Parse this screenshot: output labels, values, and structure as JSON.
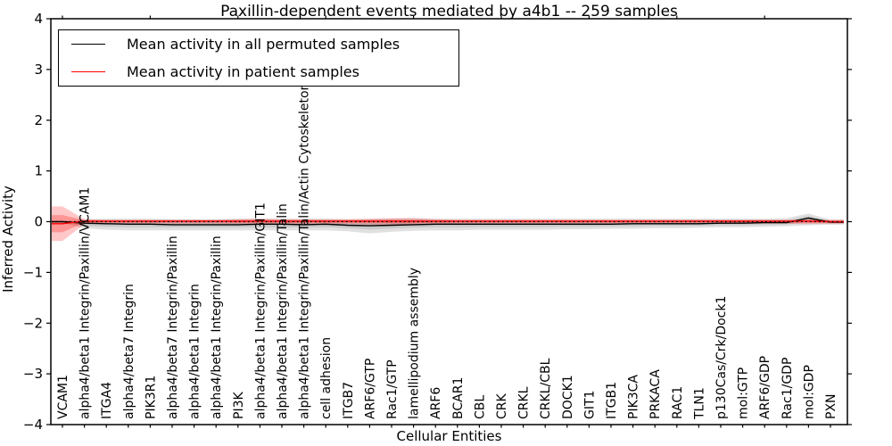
{
  "title": "Paxillin-dependent events mediated by a4b1 -- 259 samples",
  "legend": {
    "items": [
      {
        "label": "Mean activity in all permuted samples",
        "color": "#000000"
      },
      {
        "label": "Mean activity in patient samples",
        "color": "#ff0000"
      }
    ]
  },
  "colors": {
    "permuted_line": "#000000",
    "patient_line": "#ff0000",
    "permuted_band": "rgba(0,0,0,0.12)",
    "patient_band": "rgba(255,0,0,0.22)",
    "frame": "#000000"
  },
  "chart_data": {
    "type": "line",
    "title": "Paxillin-dependent events mediated by a4b1 -- 259 samples",
    "xlabel": "Cellular Entities",
    "ylabel": "Inferred Activity",
    "ylim": [
      -4,
      4
    ],
    "yticks": [
      4,
      3,
      2,
      1,
      0,
      -1,
      -2,
      -3,
      -4
    ],
    "grid": false,
    "zero_line_style": "dotted",
    "legend_position": "upper left",
    "categories": [
      "VCAM1",
      "alpha4/beta1 Integrin/Paxillin/VCAM1",
      "ITGA4",
      "alpha4/beta7 Integrin",
      "PIK3R1",
      "alpha4/beta7 Integrin/Paxillin",
      "alpha4/beta1 Integrin",
      "alpha4/beta1 Integrin/Paxillin",
      "PI3K",
      "alpha4/beta1 Integrin/Paxillin/GIT1",
      "alpha4/beta1 Integrin/Paxillin/Talin",
      "alpha4/beta1 Integrin/Paxillin/Talin/Actin Cytoskeleton",
      "cell adhesion",
      "ITGB7",
      "ARF6/GTP",
      "Rac1/GTP",
      "lamellipodium assembly",
      "ARF6",
      "BCAR1",
      "CBL",
      "CRK",
      "CRKL",
      "CRKL/CBL",
      "DOCK1",
      "GIT1",
      "ITGB1",
      "PIK3CA",
      "PRKACA",
      "RAC1",
      "TLN1",
      "p130Cas/Crk/Dock1",
      "mol:GTP",
      "ARF6/GDP",
      "Rac1/GDP",
      "mol:GDP",
      "PXN"
    ],
    "series": [
      {
        "name": "Mean activity in all permuted samples",
        "color": "#000000",
        "values": [
          0.0,
          -0.03,
          -0.04,
          -0.05,
          -0.05,
          -0.06,
          -0.06,
          -0.06,
          -0.06,
          -0.05,
          -0.05,
          -0.06,
          -0.05,
          -0.07,
          -0.08,
          -0.07,
          -0.06,
          -0.05,
          -0.05,
          -0.05,
          -0.05,
          -0.05,
          -0.05,
          -0.05,
          -0.05,
          -0.05,
          -0.04,
          -0.04,
          -0.04,
          -0.04,
          -0.03,
          -0.03,
          -0.02,
          -0.02,
          0.07,
          -0.01
        ],
        "band_upper": [
          0.02,
          0.05,
          0.06,
          0.06,
          0.06,
          0.05,
          0.05,
          0.05,
          0.06,
          0.06,
          0.06,
          0.06,
          0.06,
          0.05,
          0.05,
          0.06,
          0.07,
          0.06,
          0.06,
          0.06,
          0.06,
          0.06,
          0.06,
          0.06,
          0.06,
          0.06,
          0.06,
          0.06,
          0.06,
          0.06,
          0.06,
          0.06,
          0.06,
          0.07,
          0.16,
          0.04
        ],
        "band_lower": [
          -0.03,
          -0.13,
          -0.16,
          -0.17,
          -0.17,
          -0.17,
          -0.17,
          -0.17,
          -0.17,
          -0.17,
          -0.17,
          -0.17,
          -0.17,
          -0.19,
          -0.23,
          -0.2,
          -0.18,
          -0.17,
          -0.17,
          -0.16,
          -0.16,
          -0.16,
          -0.16,
          -0.15,
          -0.15,
          -0.14,
          -0.14,
          -0.13,
          -0.13,
          -0.12,
          -0.11,
          -0.11,
          -0.1,
          -0.09,
          -0.07,
          -0.06
        ]
      },
      {
        "name": "Mean activity in patient samples",
        "color": "#ff0000",
        "values": [
          -0.04,
          0.01,
          0.01,
          0.01,
          0.01,
          0.01,
          0.01,
          0.01,
          0.01,
          0.01,
          0.01,
          0.01,
          0.01,
          0.01,
          0.01,
          0.01,
          0.01,
          0.01,
          0.01,
          0.01,
          0.01,
          0.01,
          0.01,
          0.01,
          0.01,
          0.01,
          0.01,
          0.01,
          0.01,
          0.01,
          0.01,
          0.01,
          0.01,
          0.01,
          0.01,
          0.0
        ],
        "band_upper": [
          0.3,
          0.05,
          0.04,
          0.04,
          0.04,
          0.04,
          0.04,
          0.04,
          0.05,
          0.06,
          0.05,
          0.05,
          0.05,
          0.05,
          0.06,
          0.07,
          0.07,
          0.05,
          0.04,
          0.04,
          0.04,
          0.04,
          0.04,
          0.04,
          0.04,
          0.04,
          0.04,
          0.04,
          0.04,
          0.04,
          0.04,
          0.04,
          0.04,
          0.04,
          0.05,
          0.04
        ],
        "band_lower": [
          -0.38,
          -0.05,
          -0.04,
          -0.04,
          -0.04,
          -0.04,
          -0.04,
          -0.04,
          -0.05,
          -0.05,
          -0.05,
          -0.05,
          -0.05,
          -0.05,
          -0.06,
          -0.07,
          -0.07,
          -0.05,
          -0.04,
          -0.04,
          -0.04,
          -0.04,
          -0.04,
          -0.04,
          -0.04,
          -0.04,
          -0.04,
          -0.04,
          -0.04,
          -0.04,
          -0.04,
          -0.04,
          -0.04,
          -0.04,
          -0.05,
          -0.04
        ]
      }
    ]
  }
}
